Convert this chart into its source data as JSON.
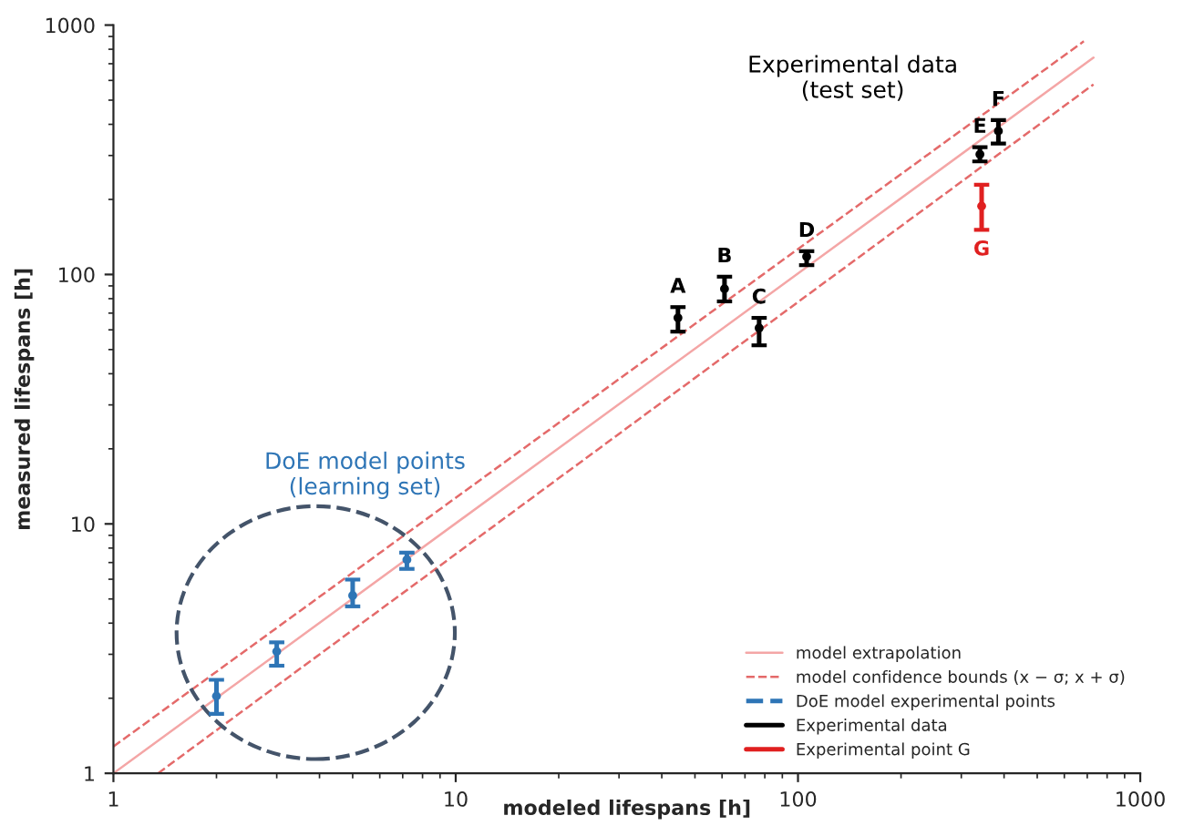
{
  "chart_data": {
    "type": "scatter",
    "xlabel": "modeled lifespans [h]",
    "ylabel": "measured lifespans [h]",
    "log": "xy",
    "xlim": [
      1,
      1000
    ],
    "ylim": [
      1,
      1000
    ],
    "xticks": [
      1,
      10,
      100,
      1000
    ],
    "yticks": [
      1,
      10,
      100,
      1000
    ],
    "grid": false,
    "legend": "bottom right",
    "marker": "circle",
    "series": [
      {
        "name": "model extrapolation",
        "type": "line",
        "marker": "none",
        "line_style": "solid",
        "color": "#f4a6a6",
        "x": [
          1,
          730
        ],
        "values": [
          1,
          740
        ]
      },
      {
        "name": "model confidence bounds (x − σ; x + σ)",
        "type": "line",
        "marker": "none",
        "line_style": "dashed",
        "color": "#e46a6a",
        "x": [
          1,
          684
        ],
        "values": [
          1.28,
          861
        ]
      },
      {
        "type": "line",
        "marker": "none",
        "line_style": "dashed",
        "color": "#e46a6a",
        "x": [
          1.35,
          730
        ],
        "values": [
          1,
          578
        ]
      },
      {
        "name": "DoE model experimental points",
        "line_style": "dashed",
        "color": "#2e75b6",
        "x": [
          2,
          3,
          5,
          7.2
        ],
        "values": [
          2.04,
          3.08,
          5.16,
          7.18
        ],
        "errors": [
          [
            1.73,
            2.37
          ],
          [
            2.7,
            3.35
          ],
          [
            4.67,
            5.98
          ],
          [
            6.6,
            7.67
          ]
        ]
      },
      {
        "name": "Experimental data",
        "line_style": "solid",
        "color": "#000000",
        "x": [
          44.6,
          61,
          77,
          106,
          340,
          385
        ],
        "values": [
          67,
          87.6,
          61,
          118,
          303,
          376
        ],
        "errors": [
          [
            59,
            74
          ],
          [
            78,
            98
          ],
          [
            52,
            67
          ],
          [
            109,
            124
          ],
          [
            284,
            324
          ],
          [
            335,
            416
          ]
        ]
      },
      {
        "name": "Experimental point G",
        "line_style": "solid",
        "color": "#e02020",
        "x": [
          344
        ],
        "values": [
          188
        ],
        "errors": [
          [
            151,
            229
          ]
        ]
      }
    ],
    "annotations": [
      "Experimental data\n(test set)",
      "DoE model points\n(learning set)",
      {
        "text": "A",
        "x": 44.6,
        "y": 74
      },
      {
        "text": "B",
        "x": 61,
        "y": 98
      },
      {
        "text": "C",
        "x": 77,
        "y": 67
      },
      {
        "text": "D",
        "x": 106,
        "y": 124
      },
      {
        "text": "E",
        "x": 340,
        "y": 324
      },
      {
        "text": "F",
        "x": 385,
        "y": 416
      },
      {
        "text": "G",
        "x": 344,
        "y": 151
      }
    ]
  }
}
